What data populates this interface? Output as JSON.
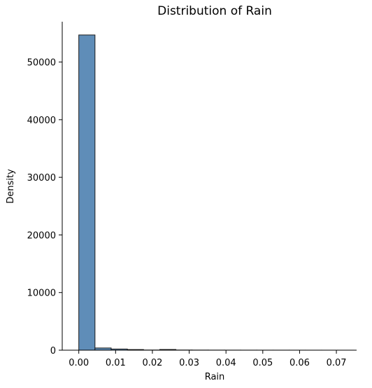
{
  "chart_data": {
    "type": "bar",
    "title": "Distribution of Rain",
    "xlabel": "Rain",
    "ylabel": "Density",
    "xlim": [
      -0.0045,
      0.0755
    ],
    "ylim": [
      0,
      57000
    ],
    "xticks": [
      0.0,
      0.01,
      0.02,
      0.03,
      0.04,
      0.05,
      0.06,
      0.07
    ],
    "xtick_labels": [
      "0.00",
      "0.01",
      "0.02",
      "0.03",
      "0.04",
      "0.05",
      "0.06",
      "0.07"
    ],
    "yticks": [
      0,
      10000,
      20000,
      30000,
      40000,
      50000
    ],
    "ytick_labels": [
      "0",
      "10000",
      "20000",
      "30000",
      "40000",
      "50000"
    ],
    "bin_edges": [
      0.0,
      0.0044,
      0.0088,
      0.0132,
      0.0176,
      0.022,
      0.0264,
      0.0308,
      0.0352,
      0.0396,
      0.044,
      0.0484,
      0.0528,
      0.0572,
      0.0616,
      0.066,
      0.0704,
      0.0748
    ],
    "values": [
      54700,
      380,
      200,
      110,
      30,
      120,
      30,
      20,
      15,
      12,
      10,
      8,
      8,
      6,
      5,
      4,
      3
    ],
    "bar_color": "#5f8db8",
    "grid": false
  }
}
